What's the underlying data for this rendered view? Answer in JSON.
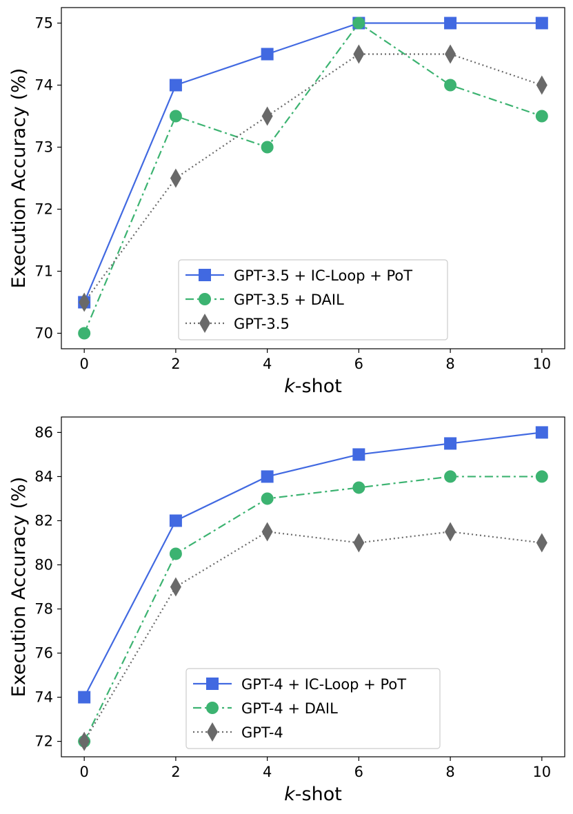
{
  "chart_data": [
    {
      "type": "line",
      "xlabel_italic": "k",
      "xlabel_rest": "-shot",
      "ylabel": "Execution Accuracy (%)",
      "x": [
        0,
        2,
        4,
        6,
        8,
        10
      ],
      "xlim": [
        -0.5,
        10.5
      ],
      "ylim": [
        69.75,
        75.25
      ],
      "xticks": [
        "0",
        "2",
        "4",
        "6",
        "8",
        "10"
      ],
      "yticks": [
        "70",
        "71",
        "72",
        "73",
        "74",
        "75"
      ],
      "legend_position": "lower-center",
      "series": [
        {
          "name": "GPT-3.5 + IC-Loop + PoT",
          "values": [
            70.5,
            74.0,
            74.5,
            75.0,
            75.0,
            75.0
          ],
          "color": "#4169e1",
          "marker": "square",
          "dash": "solid"
        },
        {
          "name": "GPT-3.5 + DAIL",
          "values": [
            70.0,
            73.5,
            73.0,
            75.0,
            74.0,
            73.5
          ],
          "color": "#3cb371",
          "marker": "circle",
          "dash": "dashdot"
        },
        {
          "name": "GPT-3.5",
          "values": [
            70.5,
            72.5,
            73.5,
            74.5,
            74.5,
            74.0
          ],
          "color": "#696969",
          "marker": "diamond",
          "dash": "dotted"
        }
      ]
    },
    {
      "type": "line",
      "xlabel_italic": "k",
      "xlabel_rest": "-shot",
      "ylabel": "Execution Accuracy (%)",
      "x": [
        0,
        2,
        4,
        6,
        8,
        10
      ],
      "xlim": [
        -0.5,
        10.5
      ],
      "ylim": [
        71.3,
        86.7
      ],
      "xticks": [
        "0",
        "2",
        "4",
        "6",
        "8",
        "10"
      ],
      "yticks": [
        "72",
        "74",
        "76",
        "78",
        "80",
        "82",
        "84",
        "86"
      ],
      "legend_position": "lower-center",
      "series": [
        {
          "name": "GPT-4 + IC-Loop + PoT",
          "values": [
            74.0,
            82.0,
            84.0,
            85.0,
            85.5,
            86.0
          ],
          "color": "#4169e1",
          "marker": "square",
          "dash": "solid"
        },
        {
          "name": "GPT-4 + DAIL",
          "values": [
            72.0,
            80.5,
            83.0,
            83.5,
            84.0,
            84.0
          ],
          "color": "#3cb371",
          "marker": "circle",
          "dash": "dashdot"
        },
        {
          "name": "GPT-4",
          "values": [
            72.0,
            79.0,
            81.5,
            81.0,
            81.5,
            81.0
          ],
          "color": "#696969",
          "marker": "diamond",
          "dash": "dotted"
        }
      ]
    }
  ]
}
